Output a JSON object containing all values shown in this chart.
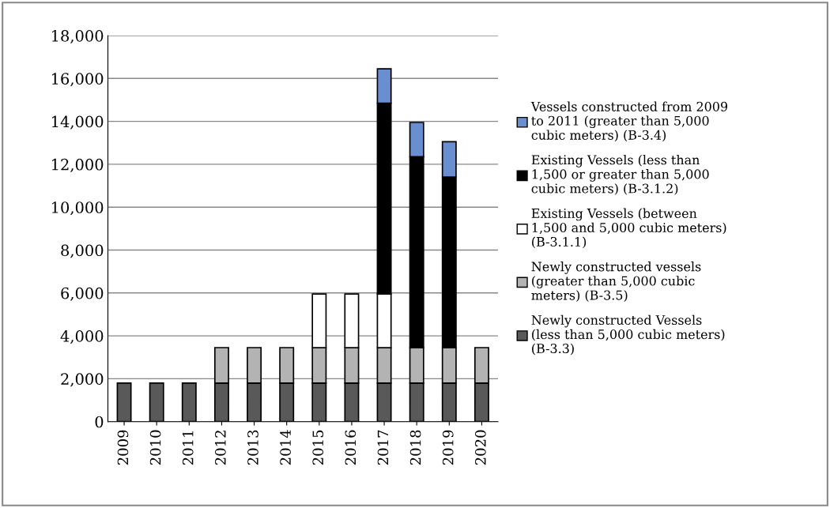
{
  "chart_data": {
    "type": "bar",
    "stacked": true,
    "categories": [
      "2009",
      "2010",
      "2011",
      "2012",
      "2013",
      "2014",
      "2015",
      "2016",
      "2017",
      "2018",
      "2019",
      "2020"
    ],
    "series": [
      {
        "name": "Newly constructed Vessels (less than 5,000 cubic meters) (B-3.3)",
        "color": "#595959",
        "values": [
          1800,
          1800,
          1800,
          1800,
          1800,
          1800,
          1800,
          1800,
          1800,
          1800,
          1800,
          1800
        ]
      },
      {
        "name": "Newly constructed vessels (greater than 5,000 cubic meters) (B-3.5)",
        "color": "#b3b3b3",
        "values": [
          null,
          null,
          null,
          1650,
          1650,
          1650,
          1650,
          1650,
          1650,
          1650,
          1650,
          1650
        ]
      },
      {
        "name": "Existing Vessels (between 1,500 and 5,000 cubic meters) (B-3.1.1)",
        "color": "#ffffff",
        "values": [
          null,
          null,
          null,
          null,
          null,
          null,
          2500,
          2500,
          2500,
          null,
          null,
          null
        ]
      },
      {
        "name": "Existing Vessels (less than 1,500 or greater than 5,000 cubic meters) (B-3.1.2)",
        "color": "#000000",
        "values": [
          null,
          null,
          null,
          null,
          null,
          null,
          null,
          null,
          8900,
          8900,
          7950,
          null
        ]
      },
      {
        "name": "Vessels constructed from 2009 to 2011 (greater than 5,000 cubic meters) (B-3.4)",
        "color": "#6a8fd0",
        "values": [
          null,
          null,
          null,
          null,
          null,
          null,
          null,
          null,
          1600,
          1600,
          1650,
          null
        ]
      }
    ],
    "ylim": [
      0,
      18000
    ],
    "yticks": [
      {
        "value": 0,
        "label": "0"
      },
      {
        "value": 2000,
        "label": "2,000"
      },
      {
        "value": 4000,
        "label": "4,000"
      },
      {
        "value": 6000,
        "label": "6,000"
      },
      {
        "value": 8000,
        "label": "8,000"
      },
      {
        "value": 10000,
        "label": "10,000"
      },
      {
        "value": 12000,
        "label": "12,000"
      },
      {
        "value": 14000,
        "label": "14,000"
      },
      {
        "value": 16000,
        "label": "16,000"
      },
      {
        "value": 18000,
        "label": "18,000"
      }
    ],
    "grid": "y",
    "legend": "right"
  }
}
